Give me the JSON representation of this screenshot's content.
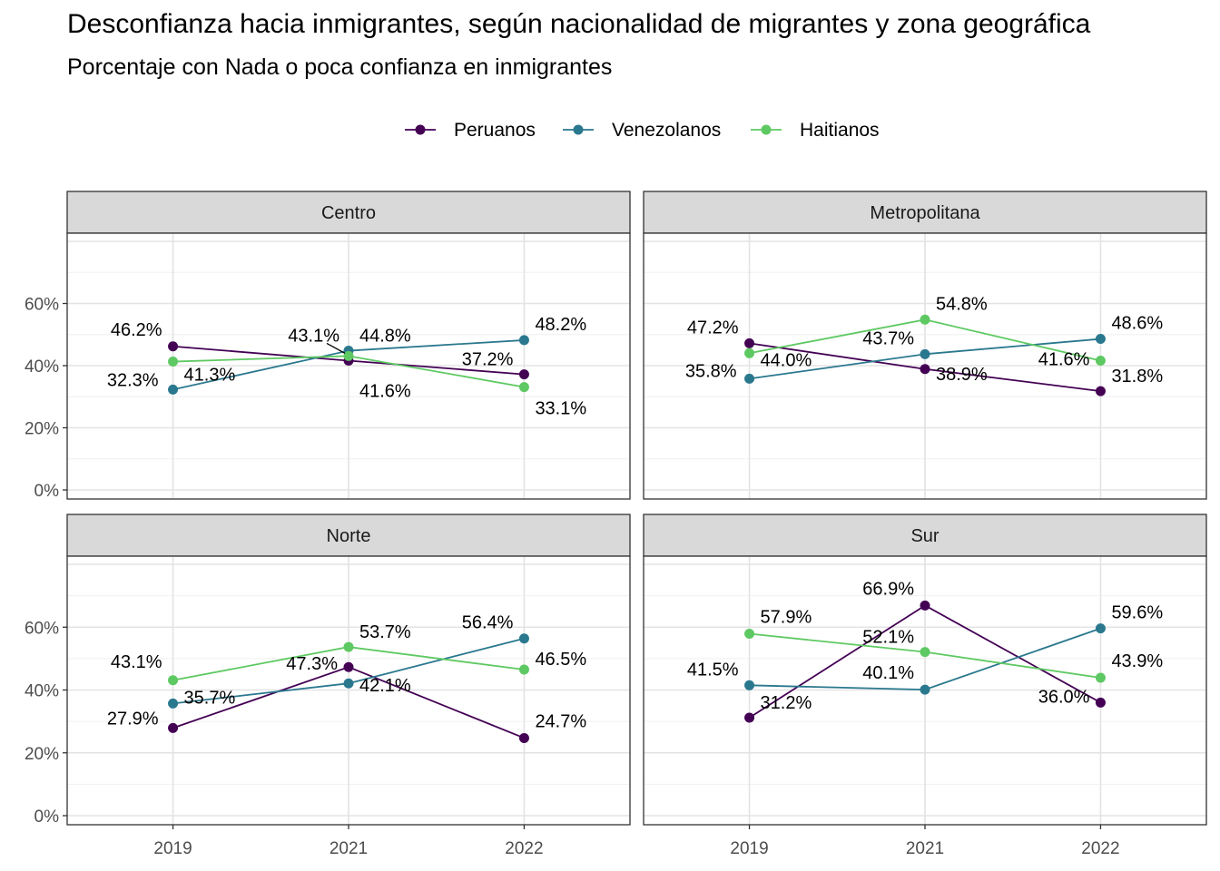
{
  "chart_data": {
    "type": "line",
    "title": "Desconfianza hacia inmigrantes, según nacionalidad de migrantes y zona geográfica",
    "subtitle": "Porcentaje con Nada o poca confianza en inmigrantes",
    "x": [
      "2019",
      "2021",
      "2022"
    ],
    "ylim": [
      0,
      80
    ],
    "y_ticks": [
      "0%",
      "20%",
      "40%",
      "60%"
    ],
    "legend_position": "top",
    "grid": true,
    "series_colors": {
      "Peruanos": "#440154",
      "Venezolanos": "#2A788E",
      "Haitianos": "#5EC962"
    },
    "legend": [
      "Peruanos",
      "Venezolanos",
      "Haitianos"
    ],
    "panels": [
      {
        "name": "Centro",
        "series": [
          {
            "name": "Peruanos",
            "values": [
              46.2,
              41.6,
              37.2
            ],
            "labels": [
              "46.2%",
              "41.6%",
              "37.2%"
            ]
          },
          {
            "name": "Venezolanos",
            "values": [
              32.3,
              44.8,
              48.2
            ],
            "labels": [
              "32.3%",
              "44.8%",
              "48.2%"
            ]
          },
          {
            "name": "Haitianos",
            "values": [
              41.3,
              43.1,
              33.1
            ],
            "labels": [
              "41.3%",
              "43.1%",
              "33.1%"
            ]
          }
        ]
      },
      {
        "name": "Metropolitana",
        "series": [
          {
            "name": "Peruanos",
            "values": [
              47.2,
              38.9,
              31.8
            ],
            "labels": [
              "47.2%",
              "38.9%",
              "31.8%"
            ]
          },
          {
            "name": "Venezolanos",
            "values": [
              35.8,
              43.7,
              48.6
            ],
            "labels": [
              "35.8%",
              "43.7%",
              "48.6%"
            ]
          },
          {
            "name": "Haitianos",
            "values": [
              44.0,
              54.8,
              41.6
            ],
            "labels": [
              "44.0%",
              "54.8%",
              "41.6%"
            ]
          }
        ]
      },
      {
        "name": "Norte",
        "series": [
          {
            "name": "Peruanos",
            "values": [
              27.9,
              47.3,
              24.7
            ],
            "labels": [
              "27.9%",
              "47.3%",
              "24.7%"
            ]
          },
          {
            "name": "Venezolanos",
            "values": [
              35.7,
              42.1,
              56.4
            ],
            "labels": [
              "35.7%",
              "42.1%",
              "56.4%"
            ]
          },
          {
            "name": "Haitianos",
            "values": [
              43.1,
              53.7,
              46.5
            ],
            "labels": [
              "43.1%",
              "53.7%",
              "46.5%"
            ]
          }
        ]
      },
      {
        "name": "Sur",
        "series": [
          {
            "name": "Peruanos",
            "values": [
              31.2,
              66.9,
              36.0
            ],
            "labels": [
              "31.2%",
              "66.9%",
              "36.0%"
            ]
          },
          {
            "name": "Venezolanos",
            "values": [
              41.5,
              40.1,
              59.6
            ],
            "labels": [
              "41.5%",
              "40.1%",
              "59.6%"
            ]
          },
          {
            "name": "Haitianos",
            "values": [
              57.9,
              52.1,
              43.9
            ],
            "labels": [
              "57.9%",
              "52.1%",
              "43.9%"
            ]
          }
        ]
      }
    ]
  }
}
